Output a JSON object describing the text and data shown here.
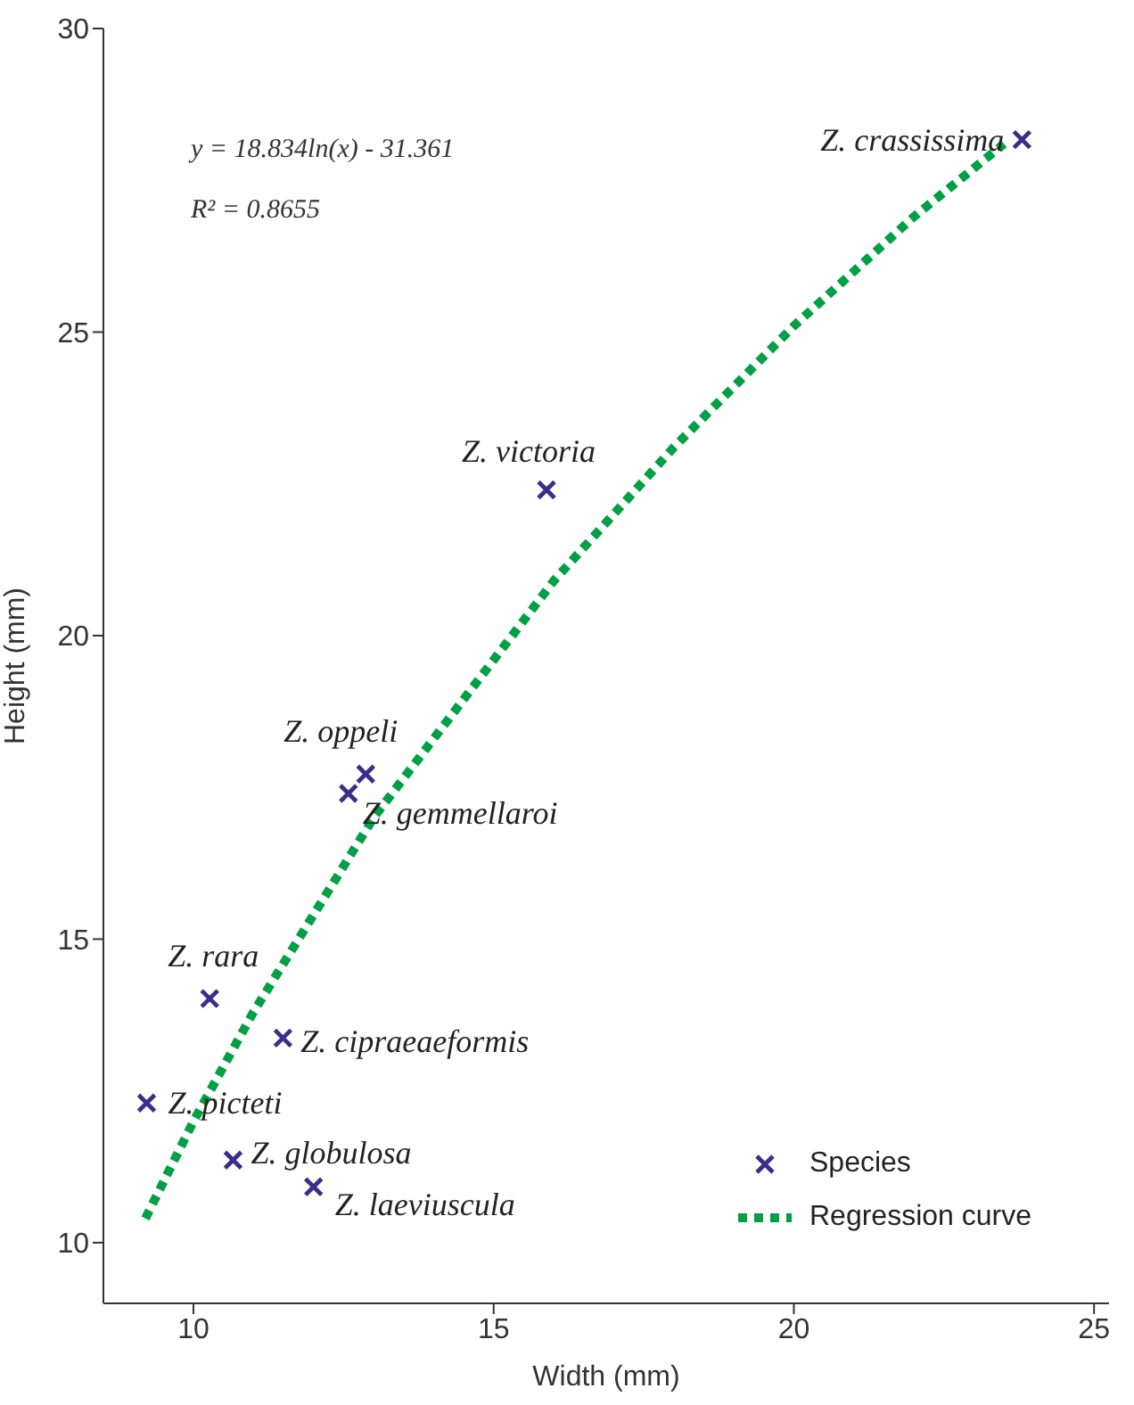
{
  "chart_data": {
    "type": "scatter",
    "xlabel": "Width (mm)",
    "ylabel": "Height (mm)",
    "xlim": [
      8.5,
      25.25
    ],
    "xticks": [
      10,
      15,
      20,
      25
    ],
    "ylim": [
      9,
      30
    ],
    "yticks": [
      10,
      15,
      20,
      25,
      30
    ],
    "grid": false,
    "legend": "bottom right",
    "series": [
      {
        "name": "Species",
        "marker": "cross",
        "color": "#3a2d8c",
        "x": [
          23.8,
          15.88,
          12.87,
          12.58,
          10.27,
          11.49,
          9.22,
          10.66,
          12.0
        ],
        "values": [
          28.17,
          22.4,
          17.72,
          17.4,
          14.02,
          13.37,
          12.3,
          11.36,
          10.92
        ]
      },
      {
        "name": "Regression curve",
        "type": "line",
        "line_style": "dotted",
        "marker": "none",
        "color": "#00a044",
        "x": [
          9.2,
          10,
          11,
          12,
          13,
          14,
          15,
          16,
          17,
          18,
          19,
          20,
          21,
          22,
          23,
          23.5
        ],
        "values": [
          10.4,
          12.0,
          13.8,
          15.4,
          17.0,
          18.3,
          19.6,
          20.9,
          22.0,
          23.1,
          24.1,
          25.1,
          26.0,
          26.9,
          27.7,
          28.1
        ]
      }
    ],
    "annotations": [
      "y = 18.834ln(x) - 31.361",
      "R² = 0.8655",
      {
        "text": "Z. crassissima",
        "x": 23.8,
        "y": 28.17
      },
      {
        "text": "Z. victoria",
        "x": 15.88,
        "y": 22.4
      },
      {
        "text": "Z. oppeli",
        "x": 12.87,
        "y": 17.72
      },
      {
        "text": "Z. gemmellaroi",
        "x": 12.58,
        "y": 17.4
      },
      {
        "text": "Z. rara",
        "x": 10.27,
        "y": 14.02
      },
      {
        "text": "Z. cipraeaeformis",
        "x": 11.49,
        "y": 13.37
      },
      {
        "text": "Z. picteti",
        "x": 9.22,
        "y": 12.3
      },
      {
        "text": "Z. globulosa",
        "x": 10.66,
        "y": 11.36
      },
      {
        "text": "Z. laeviuscula",
        "x": 12.0,
        "y": 10.92
      }
    ]
  }
}
